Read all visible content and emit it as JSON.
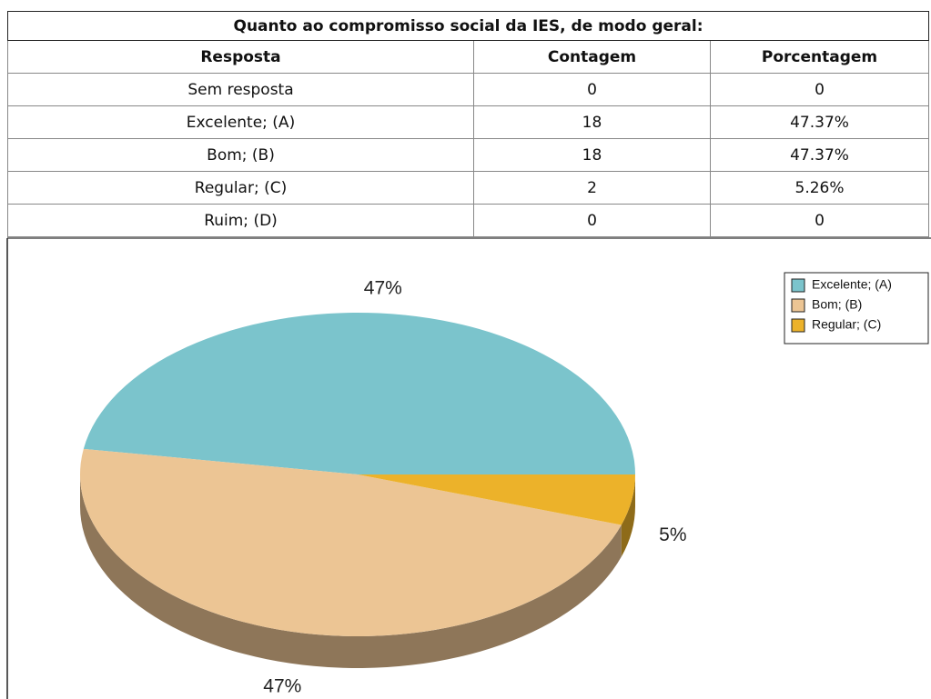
{
  "table": {
    "title": "Quanto ao compromisso social da IES, de modo geral:",
    "header": [
      "Resposta",
      "Contagem",
      "Porcentagem"
    ],
    "rows": [
      [
        "Sem resposta",
        "0",
        "0"
      ],
      [
        "Excelente; (A)",
        "18",
        "47.37%"
      ],
      [
        "Bom; (B)",
        "18",
        "47.37%"
      ],
      [
        "Regular; (C)",
        "2",
        "5.26%"
      ],
      [
        "Ruim; (D)",
        "0",
        "0"
      ]
    ]
  },
  "chart_data": {
    "type": "pie",
    "categories": [
      "Excelente; (A)",
      "Bom; (B)",
      "Regular; (C)"
    ],
    "values": [
      47,
      47,
      5
    ],
    "value_labels": [
      "47%",
      "47%",
      "5%"
    ],
    "colors": [
      "#7bc4cc",
      "#ecc594",
      "#ecb22a"
    ],
    "legend": "top-right"
  }
}
